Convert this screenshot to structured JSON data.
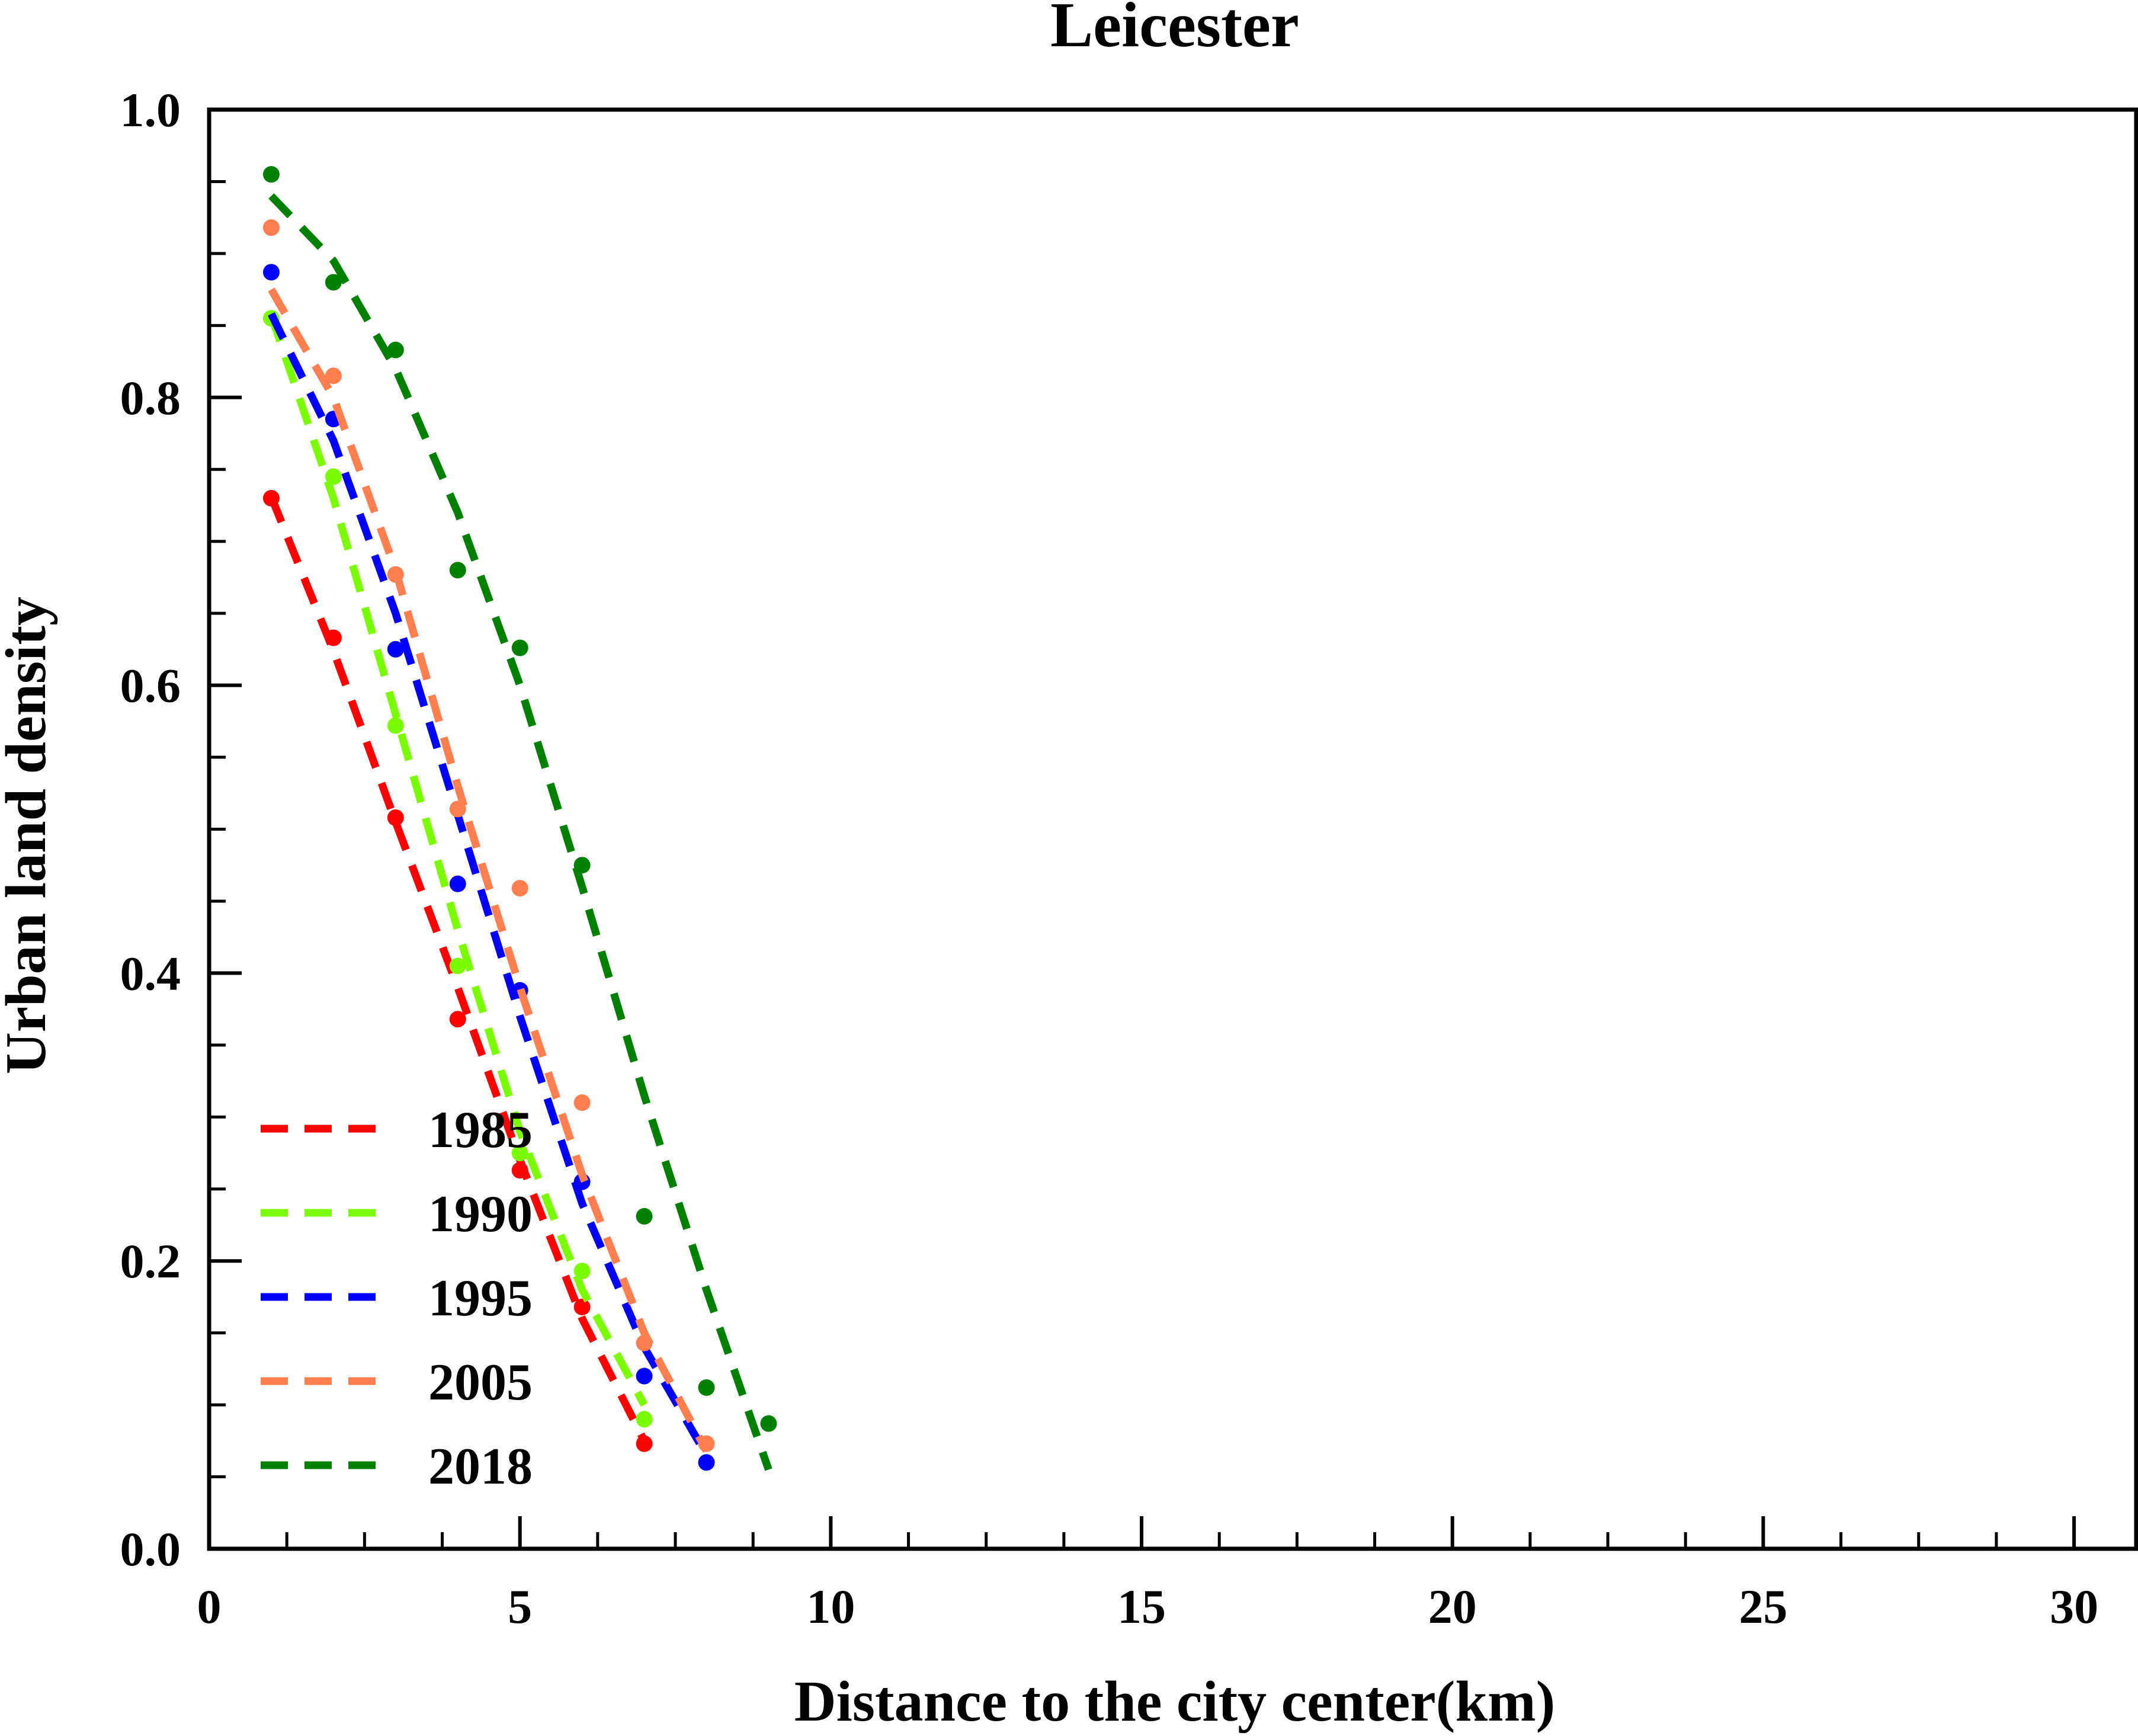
{
  "chart_data": {
    "type": "scatter",
    "title": "Leicester",
    "xlabel": "Distance to the city center(km)",
    "ylabel": "Urban land density",
    "xlim": [
      0,
      31
    ],
    "ylim": [
      0,
      1.0
    ],
    "xticks": [
      "0",
      "5",
      "10",
      "15",
      "20",
      "25",
      "30"
    ],
    "yticks": [
      "0.0",
      "0.2",
      "0.4",
      "0.6",
      "0.8",
      "1.0"
    ],
    "legend_position": "bottom-left",
    "grid": false,
    "series": [
      {
        "name": "1985",
        "color": "#ff0000",
        "x": [
          1,
          2,
          3,
          4,
          5,
          6,
          7
        ],
        "points": [
          0.73,
          0.633,
          0.508,
          0.368,
          0.263,
          0.168,
          0.073
        ],
        "fit": [
          0.731,
          0.624,
          0.505,
          0.39,
          0.27,
          0.16,
          0.075
        ]
      },
      {
        "name": "1990",
        "color": "#7cfc00",
        "x": [
          1,
          2,
          3,
          4,
          5,
          6,
          7
        ],
        "points": [
          0.855,
          0.745,
          0.572,
          0.405,
          0.275,
          0.193,
          0.09
        ],
        "fit": [
          0.857,
          0.73,
          0.58,
          0.43,
          0.29,
          0.18,
          0.1
        ]
      },
      {
        "name": "1995",
        "color": "#0000ff",
        "x": [
          1,
          2,
          3,
          4,
          5,
          6,
          7,
          8
        ],
        "points": [
          0.887,
          0.785,
          0.625,
          0.462,
          0.388,
          0.255,
          0.12,
          0.06
        ],
        "fit": [
          0.858,
          0.77,
          0.65,
          0.51,
          0.37,
          0.24,
          0.14,
          0.065
        ]
      },
      {
        "name": "2005",
        "color": "#ff7f50",
        "x": [
          1,
          2,
          3,
          4,
          5,
          6,
          7,
          8
        ],
        "points": [
          0.918,
          0.815,
          0.677,
          0.514,
          0.459,
          0.31,
          0.143,
          0.073
        ],
        "fit": [
          0.875,
          0.8,
          0.68,
          0.53,
          0.39,
          0.26,
          0.15,
          0.068
        ]
      },
      {
        "name": "2018",
        "color": "#008000",
        "x": [
          1,
          2,
          3,
          4,
          5,
          6,
          7,
          8,
          9
        ],
        "points": [
          0.955,
          0.88,
          0.833,
          0.68,
          0.626,
          0.475,
          0.231,
          0.112,
          0.087
        ],
        "fit": [
          0.94,
          0.895,
          0.82,
          0.72,
          0.6,
          0.46,
          0.315,
          0.18,
          0.055
        ]
      }
    ]
  }
}
